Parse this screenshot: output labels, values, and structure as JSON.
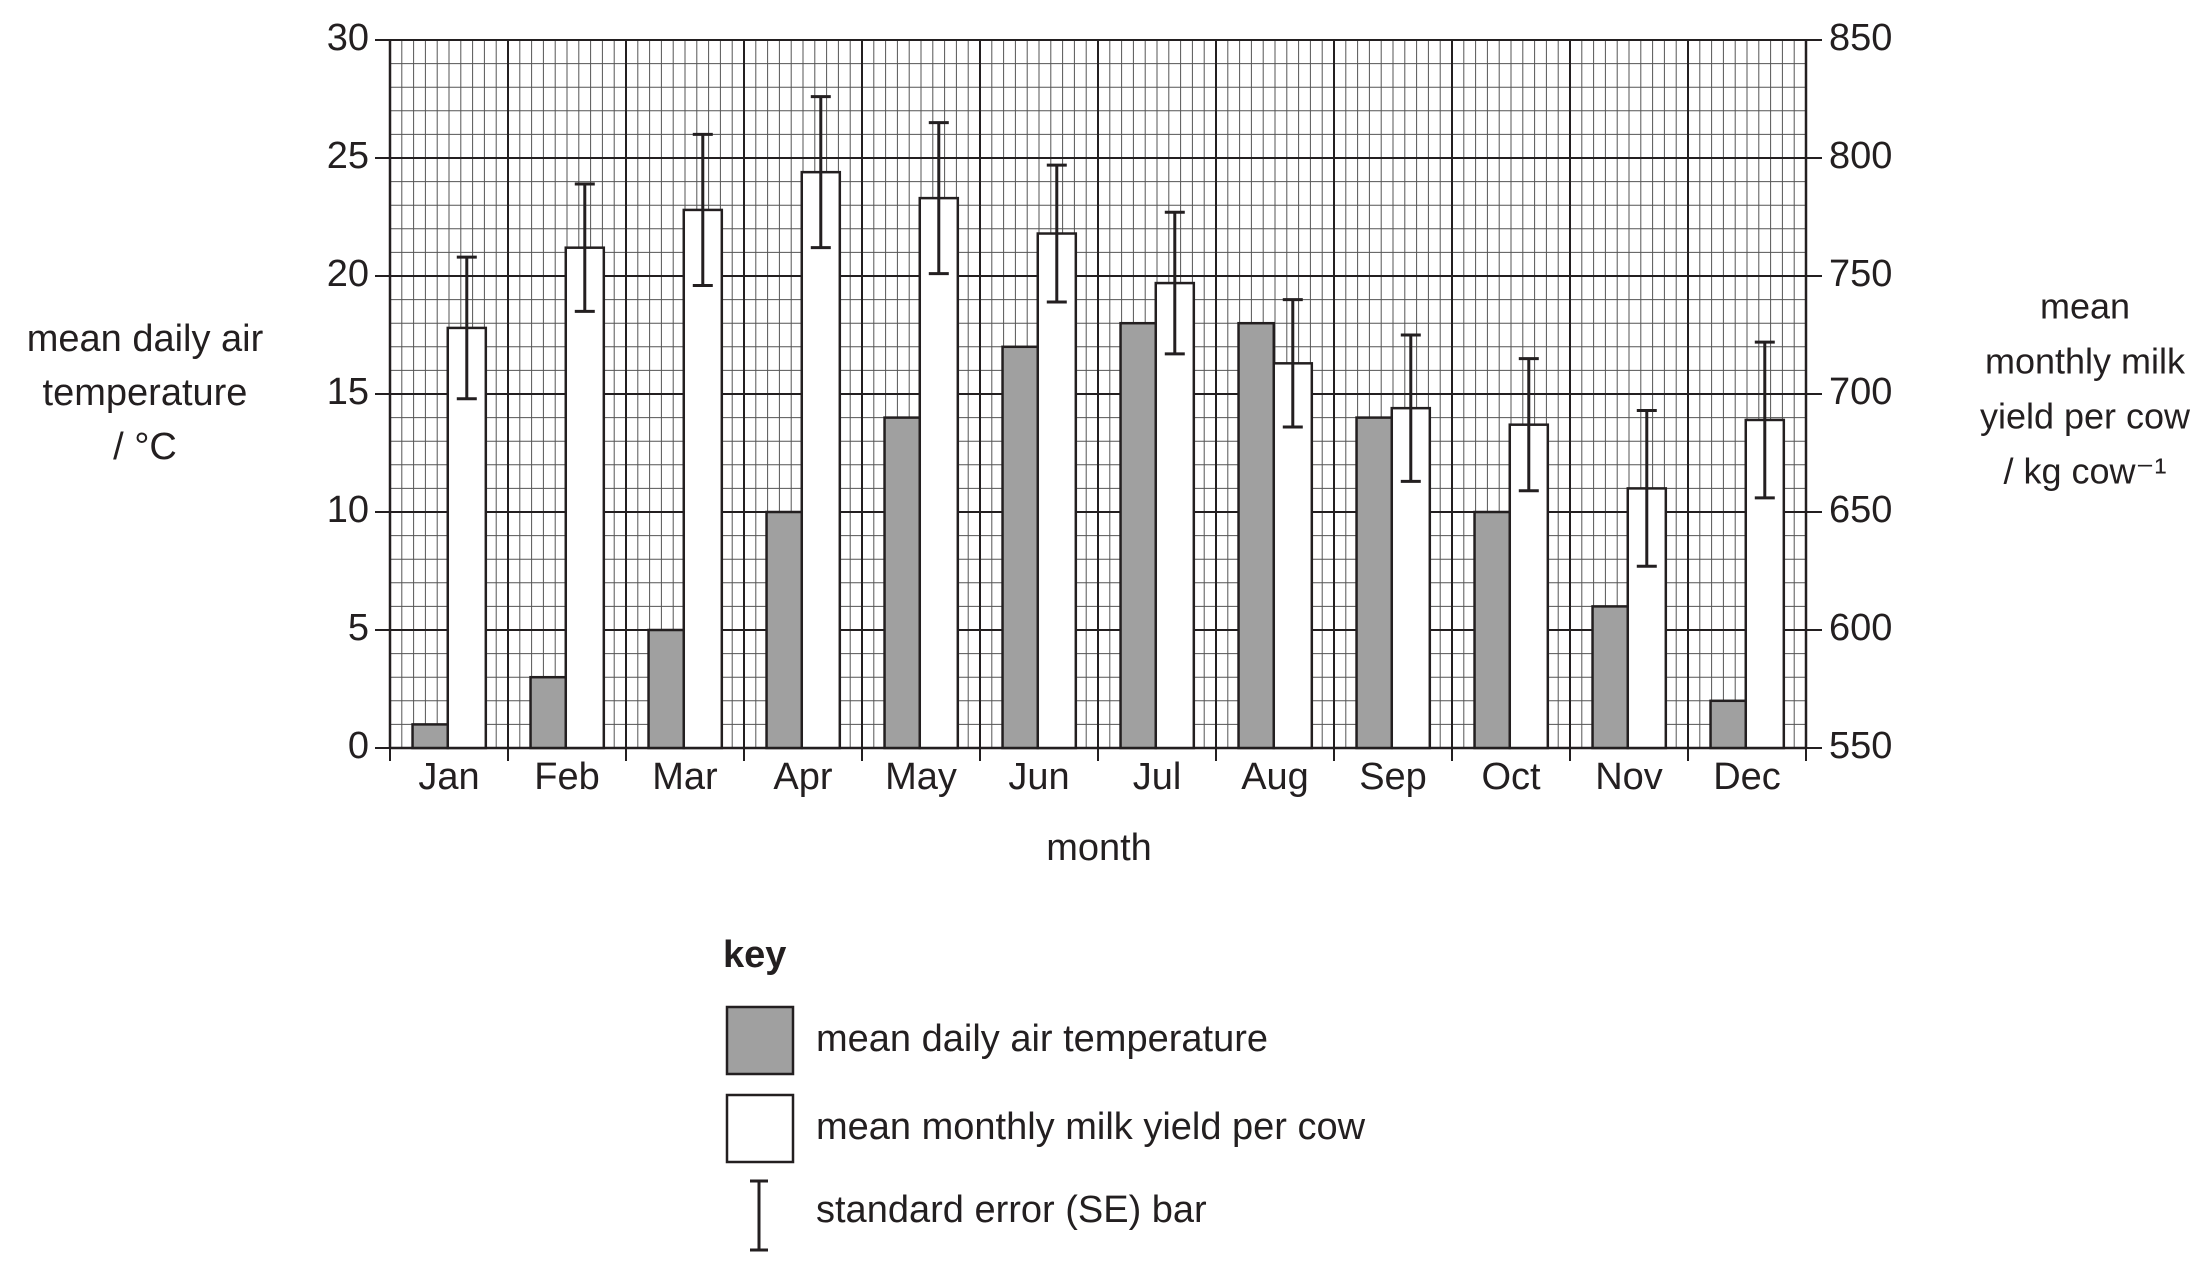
{
  "chart_data": {
    "type": "bar",
    "y_label": [
      "mean daily air",
      "temperature",
      "/ °C"
    ],
    "y2_label": [
      "mean",
      "monthly milk",
      "yield per cow",
      "/ kg cow⁻¹"
    ],
    "x_label": "month",
    "categories": [
      "Jan",
      "Feb",
      "Mar",
      "Apr",
      "May",
      "Jun",
      "Jul",
      "Aug",
      "Sep",
      "Oct",
      "Nov",
      "Dec"
    ],
    "series": [
      {
        "name": "mean daily air temperature",
        "color": "#a0a0a0",
        "values": [
          1,
          3,
          5,
          10,
          14,
          17,
          18,
          18,
          14,
          10,
          6,
          2
        ]
      },
      {
        "name": "mean monthly milk yield per cow",
        "color": "#ffffff",
        "axis": "y2",
        "values": [
          728,
          762,
          778,
          794,
          783,
          768,
          747,
          713,
          694,
          687,
          660,
          689
        ],
        "errors": [
          30,
          27,
          32,
          32,
          32,
          29,
          30,
          27,
          31,
          28,
          33,
          33
        ]
      }
    ],
    "ylim": [
      0,
      30
    ],
    "yticks": [
      0,
      5,
      10,
      15,
      20,
      25,
      30
    ],
    "y2lim": [
      550,
      850
    ],
    "y2ticks": [
      550,
      600,
      650,
      700,
      750,
      800,
      850
    ],
    "grid": true,
    "legend_title": "key",
    "error_label": "standard error (SE) bar"
  }
}
